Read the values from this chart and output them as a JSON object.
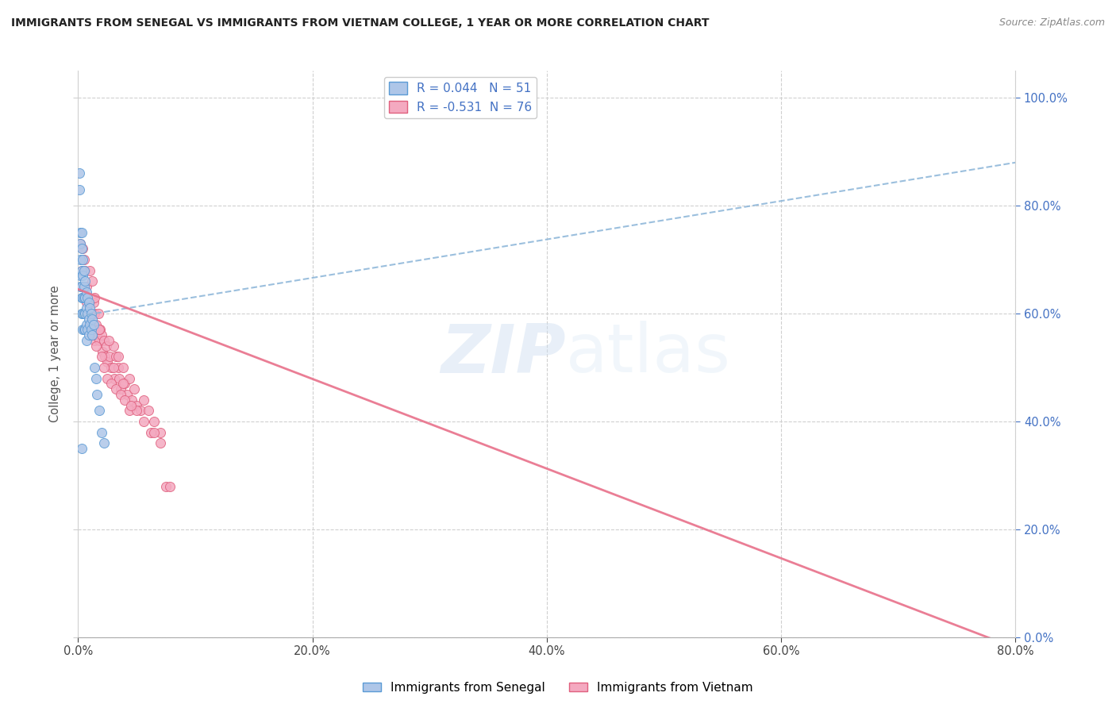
{
  "title": "IMMIGRANTS FROM SENEGAL VS IMMIGRANTS FROM VIETNAM COLLEGE, 1 YEAR OR MORE CORRELATION CHART",
  "source": "Source: ZipAtlas.com",
  "ylabel_label": "College, 1 year or more",
  "legend_r1": "R = 0.044",
  "legend_n1": "N = 51",
  "legend_r2": "R = -0.531",
  "legend_n2": "N = 76",
  "watermark_zip": "ZIP",
  "watermark_atlas": "atlas",
  "blue_scatter_face": "#aec6e8",
  "blue_scatter_edge": "#5b9bd5",
  "pink_scatter_face": "#f4a9c0",
  "pink_scatter_edge": "#e0607e",
  "trendline_blue": "#8ab4d8",
  "trendline_pink": "#e8708a",
  "axis_blue": "#4472c4",
  "grid_color": "#d0d0d0",
  "title_color": "#222222",
  "source_color": "#888888",
  "xlim": [
    0.0,
    0.8
  ],
  "ylim": [
    0.0,
    1.05
  ],
  "xticks": [
    0.0,
    0.2,
    0.4,
    0.6,
    0.8
  ],
  "yticks": [
    0.0,
    0.2,
    0.4,
    0.6,
    0.8,
    1.0
  ],
  "blue_trend_x": [
    0.0,
    0.8
  ],
  "blue_trend_y": [
    0.595,
    0.88
  ],
  "pink_trend_x": [
    0.0,
    0.8
  ],
  "pink_trend_y": [
    0.645,
    -0.02
  ],
  "senegal_x": [
    0.001,
    0.001,
    0.002,
    0.002,
    0.002,
    0.002,
    0.002,
    0.003,
    0.003,
    0.003,
    0.003,
    0.003,
    0.003,
    0.004,
    0.004,
    0.004,
    0.004,
    0.004,
    0.005,
    0.005,
    0.005,
    0.005,
    0.005,
    0.006,
    0.006,
    0.006,
    0.006,
    0.007,
    0.007,
    0.007,
    0.007,
    0.008,
    0.008,
    0.008,
    0.009,
    0.009,
    0.009,
    0.01,
    0.01,
    0.011,
    0.011,
    0.012,
    0.012,
    0.013,
    0.014,
    0.015,
    0.016,
    0.018,
    0.02,
    0.022,
    0.003
  ],
  "senegal_y": [
    0.86,
    0.83,
    0.75,
    0.73,
    0.7,
    0.67,
    0.65,
    0.75,
    0.72,
    0.68,
    0.65,
    0.63,
    0.6,
    0.7,
    0.67,
    0.63,
    0.6,
    0.57,
    0.68,
    0.65,
    0.63,
    0.6,
    0.57,
    0.66,
    0.63,
    0.6,
    0.57,
    0.64,
    0.61,
    0.58,
    0.55,
    0.63,
    0.6,
    0.57,
    0.62,
    0.59,
    0.56,
    0.61,
    0.58,
    0.6,
    0.57,
    0.59,
    0.56,
    0.58,
    0.5,
    0.48,
    0.45,
    0.42,
    0.38,
    0.36,
    0.35
  ],
  "vietnam_x": [
    0.002,
    0.003,
    0.004,
    0.004,
    0.005,
    0.006,
    0.007,
    0.007,
    0.008,
    0.009,
    0.01,
    0.01,
    0.011,
    0.012,
    0.012,
    0.013,
    0.014,
    0.014,
    0.015,
    0.016,
    0.017,
    0.018,
    0.019,
    0.02,
    0.021,
    0.022,
    0.023,
    0.024,
    0.025,
    0.027,
    0.028,
    0.03,
    0.031,
    0.032,
    0.034,
    0.035,
    0.036,
    0.038,
    0.04,
    0.042,
    0.044,
    0.046,
    0.048,
    0.05,
    0.053,
    0.056,
    0.06,
    0.065,
    0.07,
    0.075,
    0.008,
    0.01,
    0.012,
    0.015,
    0.017,
    0.02,
    0.022,
    0.025,
    0.028,
    0.032,
    0.036,
    0.04,
    0.044,
    0.05,
    0.056,
    0.062,
    0.07,
    0.078,
    0.03,
    0.038,
    0.014,
    0.018,
    0.026,
    0.034,
    0.045,
    0.065
  ],
  "vietnam_y": [
    0.73,
    0.68,
    0.72,
    0.65,
    0.7,
    0.68,
    0.65,
    0.62,
    0.63,
    0.6,
    0.68,
    0.62,
    0.6,
    0.66,
    0.58,
    0.62,
    0.6,
    0.55,
    0.58,
    0.56,
    0.6,
    0.55,
    0.57,
    0.56,
    0.53,
    0.55,
    0.52,
    0.54,
    0.51,
    0.52,
    0.5,
    0.54,
    0.48,
    0.52,
    0.5,
    0.48,
    0.46,
    0.5,
    0.47,
    0.45,
    0.48,
    0.44,
    0.46,
    0.43,
    0.42,
    0.44,
    0.42,
    0.4,
    0.38,
    0.28,
    0.6,
    0.58,
    0.56,
    0.54,
    0.57,
    0.52,
    0.5,
    0.48,
    0.47,
    0.46,
    0.45,
    0.44,
    0.42,
    0.42,
    0.4,
    0.38,
    0.36,
    0.28,
    0.5,
    0.47,
    0.63,
    0.57,
    0.55,
    0.52,
    0.43,
    0.38
  ]
}
